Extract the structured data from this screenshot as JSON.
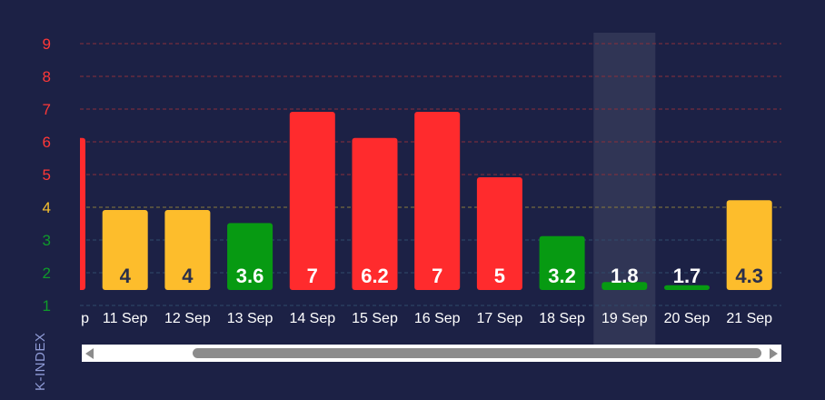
{
  "chart_data": {
    "type": "bar",
    "ylabel": "K-INDEX",
    "ylim": [
      1,
      9
    ],
    "yticks": [
      1,
      2,
      3,
      4,
      5,
      6,
      7,
      8,
      9
    ],
    "categories": [
      "p",
      "11 Sep",
      "12 Sep",
      "13 Sep",
      "14 Sep",
      "15 Sep",
      "16 Sep",
      "17 Sep",
      "18 Sep",
      "19 Sep",
      "20 Sep",
      "21 Sep"
    ],
    "values": [
      6.2,
      4,
      4,
      3.6,
      7,
      6.2,
      7,
      5,
      3.2,
      1.8,
      1.7,
      4.3
    ],
    "labels": [
      "",
      "4",
      "4",
      "3.6",
      "7",
      "6.2",
      "7",
      "5",
      "3.2",
      "1.8",
      "1.7",
      "4.3"
    ],
    "highlighted_category": "19 Sep",
    "grid": true,
    "colors": {
      "red": "#ff2b2d",
      "yellow": "#fdbd2c",
      "green": "#079a12",
      "tick_red": "#ff3838",
      "tick_yellow": "#f5c02e",
      "tick_green": "#0f9a2a"
    }
  }
}
